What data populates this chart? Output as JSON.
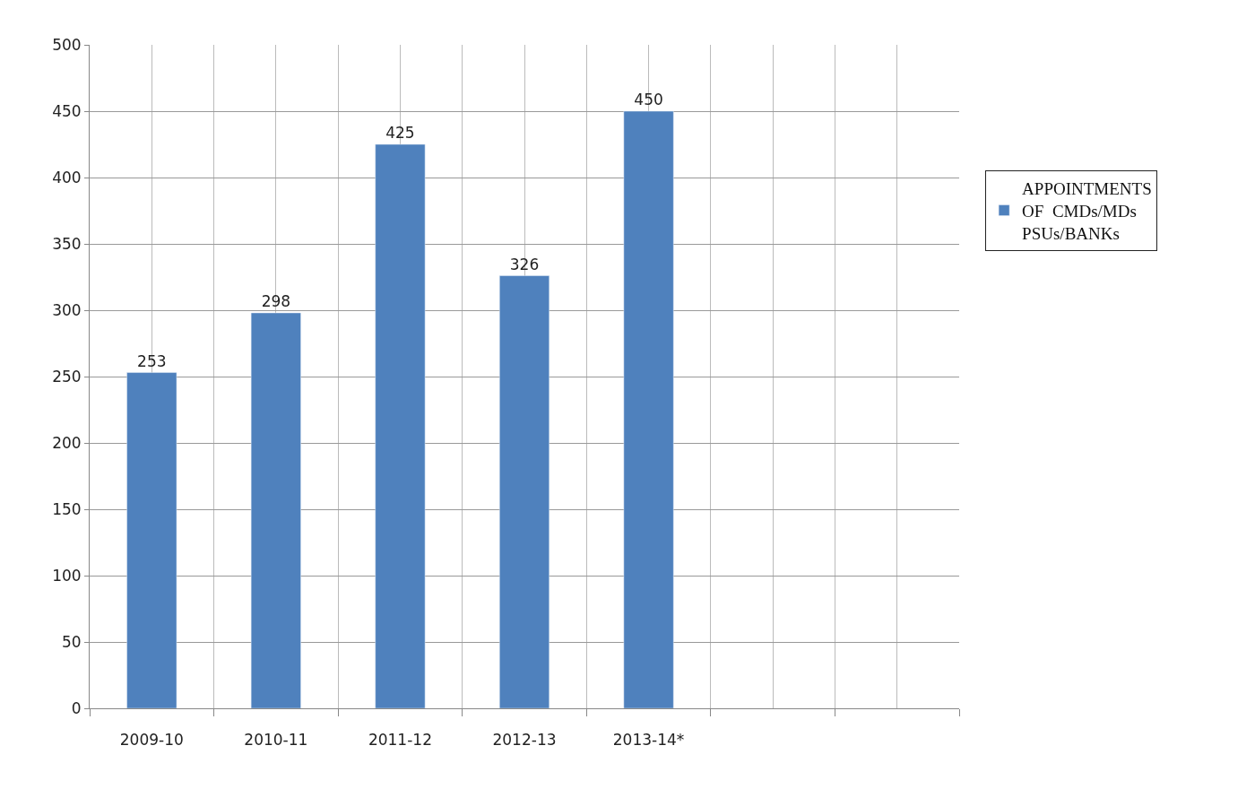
{
  "chart_data": {
    "type": "bar",
    "categories": [
      "2009-10",
      "2010-11",
      "2011-12",
      "2012-13",
      "2013-14*",
      null,
      null
    ],
    "series": [
      {
        "name": "APPOINTMENTS\nOF  CMDs/MDs\nPSUs/BANKs",
        "color": "#4f81bd",
        "values": [
          253,
          298,
          425,
          326,
          450,
          null,
          null
        ]
      }
    ],
    "ylim": [
      0,
      500
    ],
    "yticks": [
      0,
      50,
      100,
      150,
      200,
      250,
      300,
      350,
      400,
      450,
      500
    ],
    "grid": true,
    "legend": "right",
    "data_labels": true
  }
}
